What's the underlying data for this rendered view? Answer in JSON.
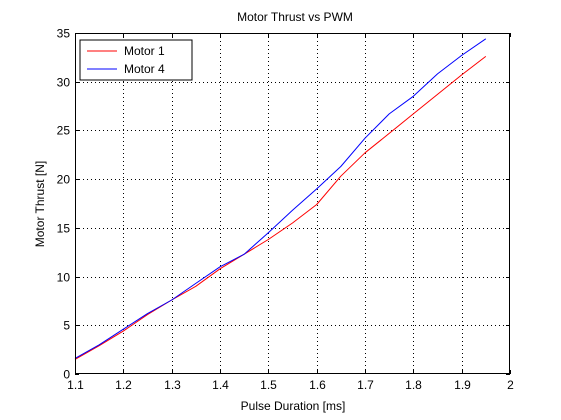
{
  "chart_data": {
    "type": "line",
    "title": "Motor Thrust vs PWM",
    "xlabel": "Pulse Duration [ms]",
    "ylabel": "Motor Thrust [N]",
    "xlim": [
      1.1,
      2.0
    ],
    "ylim": [
      0,
      35
    ],
    "xticks": [
      "1.1",
      "1.2",
      "1.3",
      "1.4",
      "1.5",
      "1.6",
      "1.7",
      "1.8",
      "1.9",
      "2"
    ],
    "yticks": [
      "0",
      "5",
      "10",
      "15",
      "20",
      "25",
      "30",
      "35"
    ],
    "grid": true,
    "legend_position": "top-left",
    "series": [
      {
        "name": "Motor 1",
        "color": "#ff0000",
        "x": [
          1.1,
          1.15,
          1.2,
          1.25,
          1.3,
          1.35,
          1.4,
          1.45,
          1.5,
          1.55,
          1.6,
          1.65,
          1.7,
          1.75,
          1.8,
          1.85,
          1.9,
          1.95
        ],
        "y": [
          1.5,
          2.9,
          4.4,
          6.1,
          7.6,
          9.0,
          10.8,
          12.3,
          13.8,
          15.5,
          17.4,
          20.3,
          22.7,
          24.7,
          26.7,
          28.7,
          30.7,
          32.6
        ]
      },
      {
        "name": "Motor 4",
        "color": "#0000ff",
        "x": [
          1.1,
          1.15,
          1.2,
          1.25,
          1.3,
          1.35,
          1.4,
          1.45,
          1.5,
          1.55,
          1.6,
          1.65,
          1.7,
          1.75,
          1.8,
          1.85,
          1.9,
          1.95
        ],
        "y": [
          1.6,
          3.0,
          4.6,
          6.2,
          7.6,
          9.3,
          11.0,
          12.3,
          14.5,
          16.8,
          19.0,
          21.3,
          24.2,
          26.7,
          28.5,
          30.8,
          32.7,
          34.4
        ]
      }
    ]
  }
}
